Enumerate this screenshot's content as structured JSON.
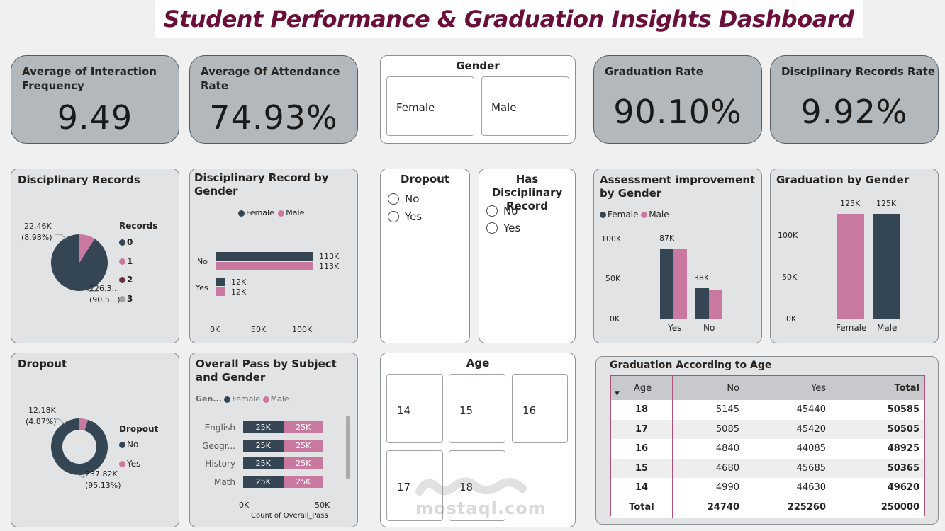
{
  "title": "Student Performance & Graduation Insights Dashboard",
  "colors": {
    "female": "#344654",
    "male": "#c9799f",
    "rec2": "#6b2e4a",
    "rec3": "#a0a0a0",
    "title": "#6b0f3a",
    "table_border": "#b0507d"
  },
  "kpis": [
    {
      "title": "Average of Interaction Frequency",
      "value": "9.49"
    },
    {
      "title": "Average Of Attendance Rate",
      "value": "74.93%"
    },
    {
      "title": "Graduation Rate",
      "value": "90.10%"
    },
    {
      "title": "Disciplinary Records Rate",
      "value": "9.92%"
    }
  ],
  "gender_slicer": {
    "title": "Gender",
    "options": [
      "Female",
      "Male"
    ]
  },
  "dropout_slicer": {
    "title": "Dropout",
    "options": [
      "No",
      "Yes"
    ]
  },
  "disc_slicer": {
    "title": "Has Disciplinary Record",
    "options": [
      "No",
      "Yes"
    ]
  },
  "age_slicer": {
    "title": "Age",
    "options": [
      "14",
      "15",
      "16",
      "17",
      "18"
    ]
  },
  "disc_pie": {
    "title": "Disciplinary Records",
    "legend_title": "Records",
    "legend": [
      "0",
      "1",
      "2",
      "3"
    ],
    "label_small": "22.46K",
    "label_small_pct": "(8.98%)",
    "label_big": "226.3...",
    "label_big_pct": "(90.5...)"
  },
  "disc_gender": {
    "title": "Disciplinary Record by Gender",
    "legend": [
      "Female",
      "Male"
    ],
    "cat_no": "No",
    "cat_yes": "Yes",
    "no_f": "113K",
    "no_m": "113K",
    "yes_f": "12K",
    "yes_m": "12K",
    "ticks": [
      "0K",
      "50K",
      "100K"
    ]
  },
  "assess": {
    "title": "Assessment improvement by Gender",
    "legend": [
      "Female",
      "Male"
    ],
    "yticks": [
      "100K",
      "50K",
      "0K"
    ],
    "cats": [
      "Yes",
      "No"
    ],
    "labels": [
      "87K",
      "38K"
    ]
  },
  "grad_gender": {
    "title": "Graduation by Gender",
    "yticks": [
      "100K",
      "50K",
      "0K"
    ],
    "cats": [
      "Female",
      "Male"
    ],
    "labels": [
      "125K",
      "125K"
    ]
  },
  "dropout_donut": {
    "title": "Dropout",
    "legend_title": "Dropout",
    "legend": [
      "No",
      "Yes"
    ],
    "label_small": "12.18K",
    "label_small_pct": "(4.87%)",
    "label_big": "237.82K",
    "label_big_pct": "(95.13%)"
  },
  "pass_subject": {
    "title": "Overall Pass by Subject and Gender",
    "legend_title": "Gen...",
    "legend": [
      "Female",
      "Male"
    ],
    "subjects": [
      "English",
      "Geogr...",
      "History",
      "Math"
    ],
    "value_label": "25K",
    "ticks": [
      "0K",
      "50K"
    ],
    "xlabel": "Count of Overall_Pass"
  },
  "grad_age": {
    "title": "Graduation According to Age",
    "headers": [
      "Age",
      "No",
      "Yes",
      "Total"
    ],
    "rows": [
      [
        "18",
        "5145",
        "45440",
        "50585"
      ],
      [
        "17",
        "5085",
        "45420",
        "50505"
      ],
      [
        "16",
        "4840",
        "44085",
        "48925"
      ],
      [
        "15",
        "4680",
        "45685",
        "50365"
      ],
      [
        "14",
        "4990",
        "44630",
        "49620"
      ]
    ],
    "total": [
      "Total",
      "24740",
      "225260",
      "250000"
    ]
  },
  "watermark": {
    "text": "mostaql.com"
  },
  "chart_data": [
    {
      "type": "pie",
      "title": "Disciplinary Records",
      "categories": [
        "0",
        "1"
      ],
      "values": [
        226300,
        22460
      ],
      "percent": [
        90.5,
        8.98
      ]
    },
    {
      "type": "bar",
      "title": "Disciplinary Record by Gender",
      "categories": [
        "No",
        "Yes"
      ],
      "series": [
        {
          "name": "Female",
          "values": [
            113000,
            12000
          ]
        },
        {
          "name": "Male",
          "values": [
            113000,
            12000
          ]
        }
      ],
      "xlim": [
        0,
        120000
      ]
    },
    {
      "type": "bar",
      "title": "Assessment improvement by Gender",
      "categories": [
        "Yes",
        "No"
      ],
      "series": [
        {
          "name": "Female",
          "values": [
            87000,
            38000
          ]
        },
        {
          "name": "Male",
          "values": [
            87000,
            38000
          ]
        }
      ],
      "ylim": [
        0,
        110000
      ]
    },
    {
      "type": "bar",
      "title": "Graduation by Gender",
      "categories": [
        "Female",
        "Male"
      ],
      "values": [
        125000,
        125000
      ],
      "ylim": [
        0,
        130000
      ]
    },
    {
      "type": "pie",
      "title": "Dropout",
      "categories": [
        "No",
        "Yes"
      ],
      "values": [
        237820,
        12180
      ],
      "percent": [
        95.13,
        4.87
      ]
    },
    {
      "type": "bar",
      "title": "Overall Pass by Subject and Gender",
      "categories": [
        "English",
        "Geogr...",
        "History",
        "Math"
      ],
      "series": [
        {
          "name": "Female",
          "values": [
            25000,
            25000,
            25000,
            25000
          ]
        },
        {
          "name": "Male",
          "values": [
            25000,
            25000,
            25000,
            25000
          ]
        }
      ],
      "xlabel": "Count of Overall_Pass",
      "xlim": [
        0,
        50000
      ]
    }
  ]
}
